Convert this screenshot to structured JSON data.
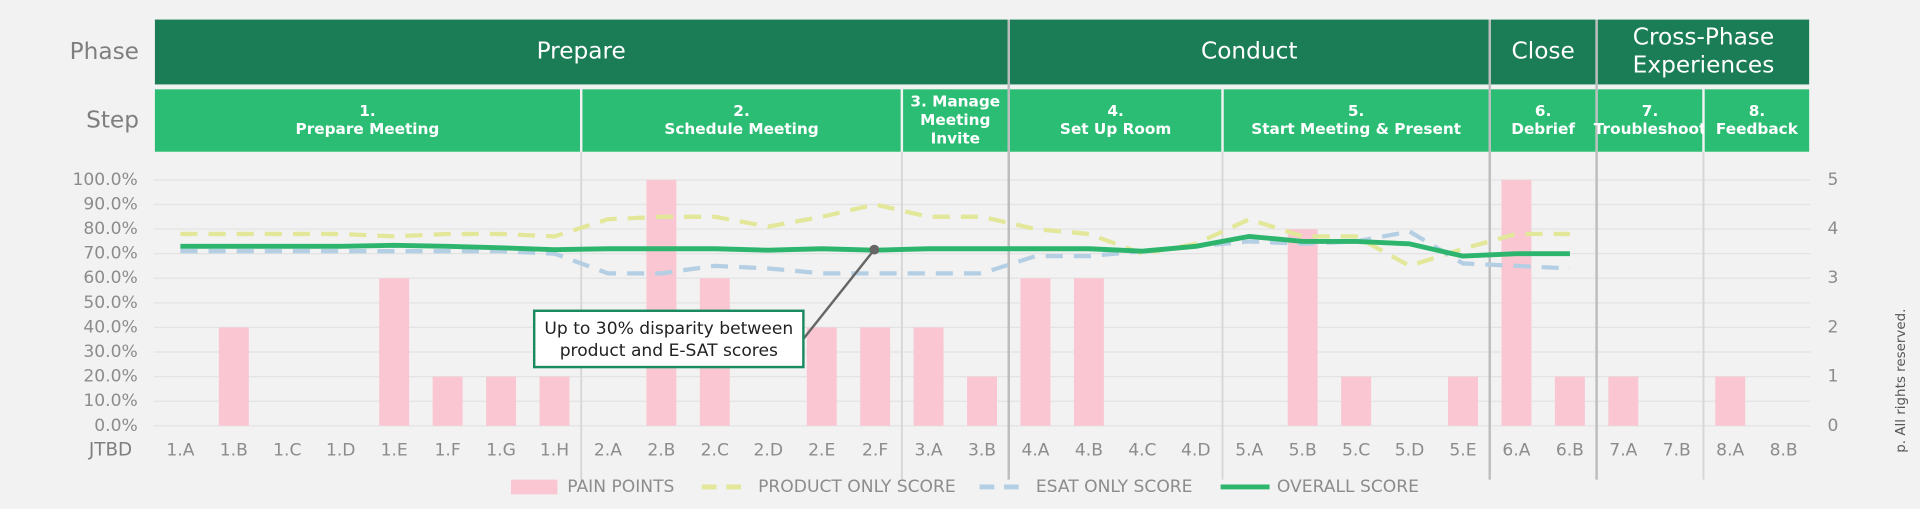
{
  "chart_data": {
    "type": "bar_line_combo",
    "row_labels": {
      "phase": "Phase",
      "step": "Step",
      "jtbd": "JTBD"
    },
    "phases": [
      {
        "lines": [
          "Prepare"
        ],
        "steps": [
          {
            "lines": [
              "1.",
              "Prepare Meeting"
            ],
            "jtbd": [
              "1.A",
              "1.B",
              "1.C",
              "1.D",
              "1.E",
              "1.F",
              "1.G",
              "1.H"
            ]
          },
          {
            "lines": [
              "2.",
              "Schedule Meeting"
            ],
            "jtbd": [
              "2.A",
              "2.B",
              "2.C",
              "2.D",
              "2.E",
              "2.F"
            ]
          },
          {
            "lines": [
              "3. Manage",
              "Meeting",
              "Invite"
            ],
            "jtbd": [
              "3.A",
              "3.B"
            ]
          }
        ]
      },
      {
        "lines": [
          "Conduct"
        ],
        "steps": [
          {
            "lines": [
              "4.",
              "Set Up Room"
            ],
            "jtbd": [
              "4.A",
              "4.B",
              "4.C",
              "4.D"
            ]
          },
          {
            "lines": [
              "5.",
              "Start Meeting & Present"
            ],
            "jtbd": [
              "5.A",
              "5.B",
              "5.C",
              "5.D",
              "5.E"
            ]
          }
        ]
      },
      {
        "lines": [
          "Close"
        ],
        "steps": [
          {
            "lines": [
              "6.",
              "Debrief"
            ],
            "jtbd": [
              "6.A",
              "6.B"
            ]
          }
        ]
      },
      {
        "lines": [
          "Cross-Phase",
          "Experiences"
        ],
        "steps": [
          {
            "lines": [
              "7.",
              "Troubleshoot"
            ],
            "jtbd": [
              "7.A",
              "7.B"
            ]
          },
          {
            "lines": [
              "8.",
              "Feedback"
            ],
            "jtbd": [
              "8.A",
              "8.B"
            ]
          }
        ]
      }
    ],
    "series": [
      {
        "name": "PAIN POINTS",
        "kind": "bar",
        "color": "#f9c6d2",
        "axis": "y",
        "values": [
          0,
          40,
          0,
          0,
          60,
          20,
          20,
          20,
          0,
          100,
          60,
          0,
          40,
          40,
          40,
          20,
          60,
          60,
          0,
          0,
          0,
          80,
          20,
          0,
          20,
          100,
          20,
          20,
          0,
          20,
          0
        ]
      },
      {
        "name": "PRODUCT ONLY SCORE",
        "kind": "line",
        "dashed": true,
        "color": "#e3e79a",
        "axis": "y2",
        "values": [
          3.9,
          3.9,
          3.9,
          3.9,
          3.85,
          3.9,
          3.9,
          3.85,
          4.2,
          4.25,
          4.25,
          4.05,
          4.25,
          4.5,
          4.25,
          4.25,
          4.0,
          3.9,
          3.5,
          3.7,
          4.2,
          3.85,
          3.85,
          3.25,
          3.6,
          3.9,
          3.9,
          null,
          null,
          null,
          null
        ]
      },
      {
        "name": "ESAT ONLY SCORE",
        "kind": "line",
        "dashed": true,
        "color": "#b4cfe3",
        "axis": "y2",
        "values": [
          3.55,
          3.55,
          3.55,
          3.55,
          3.55,
          3.55,
          3.55,
          3.5,
          3.1,
          3.1,
          3.25,
          3.2,
          3.1,
          3.1,
          3.1,
          3.1,
          3.45,
          3.45,
          3.55,
          3.65,
          3.75,
          3.7,
          3.75,
          3.95,
          3.3,
          3.25,
          3.2,
          null,
          null,
          null,
          null
        ]
      },
      {
        "name": "OVERALL SCORE",
        "kind": "line",
        "dashed": false,
        "color": "#2db56e",
        "axis": "y2",
        "values": [
          3.65,
          3.65,
          3.65,
          3.65,
          3.67,
          3.65,
          3.62,
          3.58,
          3.6,
          3.6,
          3.6,
          3.57,
          3.6,
          3.57,
          3.6,
          3.6,
          3.6,
          3.6,
          3.55,
          3.65,
          3.85,
          3.75,
          3.75,
          3.7,
          3.45,
          3.5,
          3.5,
          null,
          null,
          null,
          null
        ]
      }
    ],
    "ylim": [
      0,
      100
    ],
    "yticks": [
      {
        "value": 0,
        "label": "0.0%"
      },
      {
        "value": 10,
        "label": "10.0%"
      },
      {
        "value": 20,
        "label": "20.0%"
      },
      {
        "value": 30,
        "label": "30.0%"
      },
      {
        "value": 40,
        "label": "40.0%"
      },
      {
        "value": 50,
        "label": "50.0%"
      },
      {
        "value": 60,
        "label": "60.0%"
      },
      {
        "value": 70,
        "label": "70.0%"
      },
      {
        "value": 80,
        "label": "80.0%"
      },
      {
        "value": 90,
        "label": "90.0%"
      },
      {
        "value": 100,
        "label": "100.0%"
      }
    ],
    "y2lim": [
      0,
      5
    ],
    "y2ticks": [
      0,
      1,
      2,
      3,
      4,
      5
    ],
    "grid": true,
    "legend": "bottom",
    "annotation": {
      "lines": [
        "Up to 30% disparity between",
        "product and E-SAT scores"
      ]
    },
    "footer": "p. All rights reserved."
  }
}
